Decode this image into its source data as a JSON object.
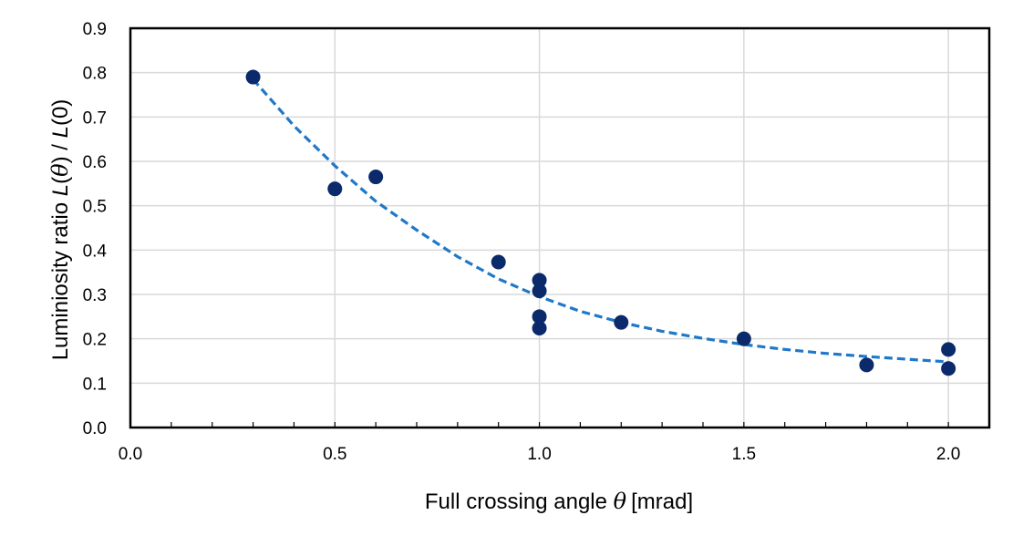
{
  "chart_data": {
    "type": "scatter",
    "xlabel": {
      "prefix": "Full crossing angle ",
      "symbol": "θ",
      "suffix": "[mrad]"
    },
    "ylabel": {
      "prefix": "Luminiosity ratio ",
      "L1": "L",
      "open1": "(",
      "theta": "θ",
      "close1": ")",
      "slash": " / ",
      "L2": "L",
      "rest": "(0)"
    },
    "xlim": [
      0.0,
      2.1
    ],
    "ylim": [
      0.0,
      0.9
    ],
    "x_ticks_major": [
      "0.0",
      "0.5",
      "1.0",
      "1.5",
      "2.0"
    ],
    "x_minor_step": 0.1,
    "y_ticks": [
      "0.0",
      "0.1",
      "0.2",
      "0.3",
      "0.4",
      "0.5",
      "0.6",
      "0.7",
      "0.8",
      "0.9"
    ],
    "grid": true,
    "series": [
      {
        "points": [
          {
            "x": 0.3,
            "y": 0.79
          },
          {
            "x": 0.5,
            "y": 0.538
          },
          {
            "x": 0.6,
            "y": 0.565
          },
          {
            "x": 0.9,
            "y": 0.373
          },
          {
            "x": 1.0,
            "y": 0.332
          },
          {
            "x": 1.0,
            "y": 0.308
          },
          {
            "x": 1.0,
            "y": 0.25
          },
          {
            "x": 1.0,
            "y": 0.224
          },
          {
            "x": 1.2,
            "y": 0.237
          },
          {
            "x": 1.5,
            "y": 0.2
          },
          {
            "x": 1.8,
            "y": 0.141
          },
          {
            "x": 2.0,
            "y": 0.176
          },
          {
            "x": 2.0,
            "y": 0.133
          }
        ]
      }
    ],
    "trendline": {
      "style": "dashed",
      "points": [
        {
          "x": 0.3,
          "y": 0.785
        },
        {
          "x": 0.4,
          "y": 0.68
        },
        {
          "x": 0.5,
          "y": 0.59
        },
        {
          "x": 0.6,
          "y": 0.51
        },
        {
          "x": 0.7,
          "y": 0.445
        },
        {
          "x": 0.8,
          "y": 0.385
        },
        {
          "x": 0.9,
          "y": 0.335
        },
        {
          "x": 1.0,
          "y": 0.295
        },
        {
          "x": 1.1,
          "y": 0.262
        },
        {
          "x": 1.2,
          "y": 0.237
        },
        {
          "x": 1.3,
          "y": 0.217
        },
        {
          "x": 1.4,
          "y": 0.201
        },
        {
          "x": 1.5,
          "y": 0.187
        },
        {
          "x": 1.6,
          "y": 0.176
        },
        {
          "x": 1.7,
          "y": 0.167
        },
        {
          "x": 1.8,
          "y": 0.16
        },
        {
          "x": 1.9,
          "y": 0.154
        },
        {
          "x": 2.0,
          "y": 0.148
        }
      ]
    },
    "colors": {
      "marker": "#0b2a6b",
      "trendline": "#1f78c8",
      "grid": "#d9d9d9",
      "axis": "#000000"
    }
  }
}
